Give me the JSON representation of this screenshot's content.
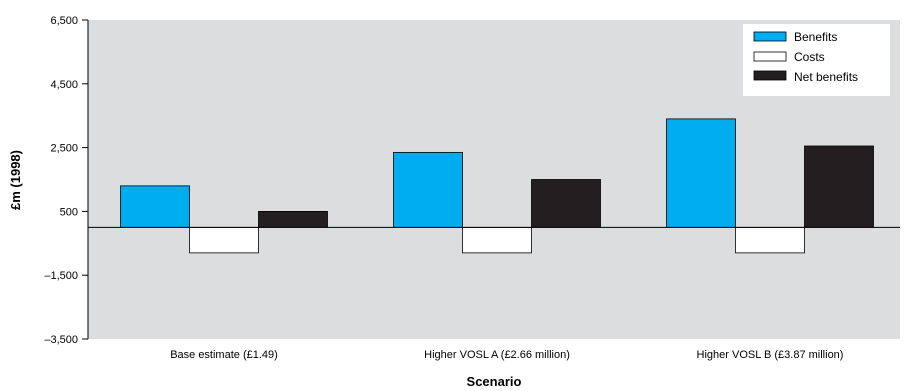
{
  "chart_data": {
    "type": "bar",
    "categories": [
      "Base estimate (£1.49)",
      "Higher VOSL A (£2.66 million)",
      "Higher VOSL B (£3.87 million)"
    ],
    "series": [
      {
        "name": "Benefits",
        "values": [
          1300,
          2350,
          3400
        ],
        "color": "#00aeef"
      },
      {
        "name": "Costs",
        "values": [
          -800,
          -800,
          -800
        ],
        "color": "#ffffff"
      },
      {
        "name": "Net benefits",
        "values": [
          500,
          1500,
          2550
        ],
        "color": "#231f20"
      }
    ],
    "title": "",
    "xlabel": "Scenario",
    "ylabel": "£m (1998)",
    "ylim": [
      -3500,
      6500
    ],
    "yticks": [
      6500,
      4500,
      2500,
      500,
      -1500,
      -3500
    ],
    "ytick_labels": [
      "6,500",
      "4,500",
      "2,500",
      "500",
      "–1,500",
      "–3,500"
    ],
    "grid": false,
    "legend_position": "top-right",
    "plot_background": "#dcdddf"
  }
}
